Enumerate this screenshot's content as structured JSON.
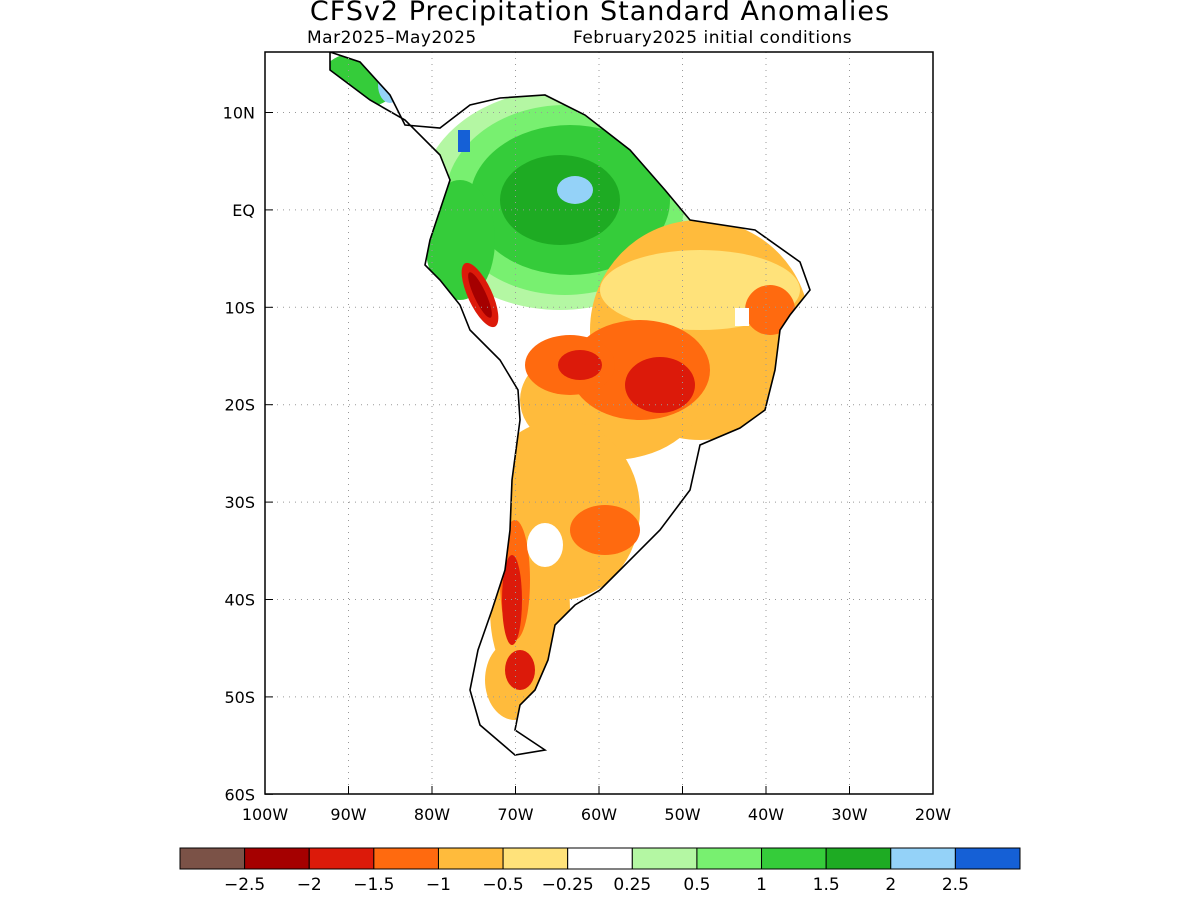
{
  "title": "CFSv2 Precipitation Standard Anomalies",
  "subtitle_left": "Mar2025–May2025",
  "subtitle_right": "February2025 initial conditions",
  "lon_labels": [
    "100W",
    "90W",
    "80W",
    "70W",
    "60W",
    "50W",
    "40W",
    "30W",
    "20W"
  ],
  "lat_labels": [
    "10N",
    "EQ",
    "10S",
    "20S",
    "30S",
    "40S",
    "50S",
    "60S"
  ],
  "colorbar": {
    "colors": [
      "#7b5247",
      "#a50000",
      "#dc1a0a",
      "#ff6a0f",
      "#ffbb3c",
      "#ffe27a",
      "#ffffff",
      "#b4f7a3",
      "#78f070",
      "#35cc3a",
      "#1eab23",
      "#94d2f8",
      "#1560d6"
    ],
    "labels": [
      "−2.5",
      "−2",
      "−1.5",
      "−1",
      "−0.5",
      "−0.25",
      "0.25",
      "0.5",
      "1",
      "1.5",
      "2",
      "2.5"
    ]
  }
}
